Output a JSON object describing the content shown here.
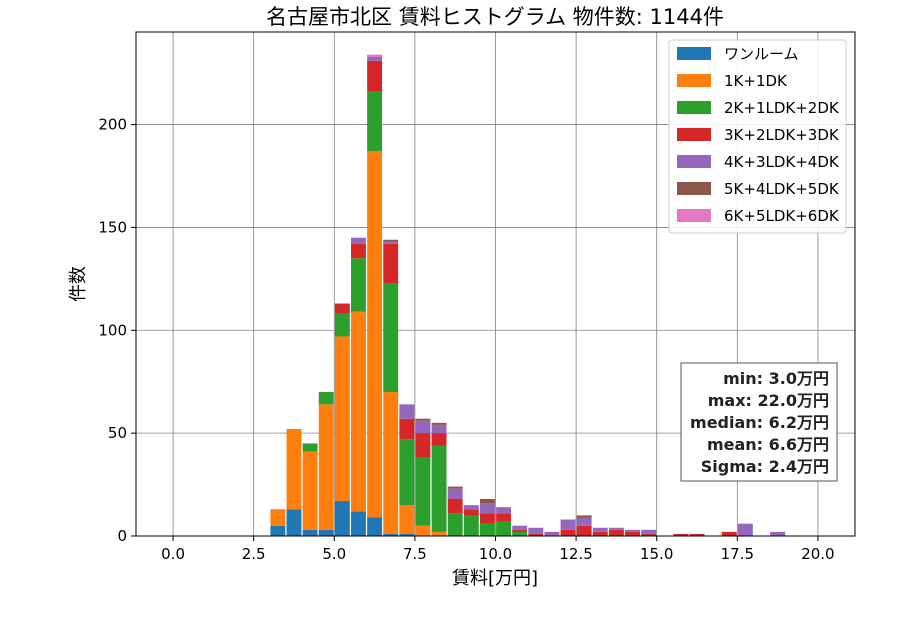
{
  "chart_data": {
    "type": "bar",
    "stacked": true,
    "title": "名古屋市北区 賃料ヒストグラム 物件数: 1144件",
    "xlabel": "賃料[万円]",
    "ylabel": "件数",
    "xlim": [
      -1.15,
      21.15
    ],
    "ylim": [
      0,
      245
    ],
    "xticks": [
      "0.0",
      "2.5",
      "5.0",
      "7.5",
      "10.0",
      "12.5",
      "15.0",
      "17.5",
      "20.0"
    ],
    "yticks": [
      "0",
      "50",
      "100",
      "150",
      "200"
    ],
    "grid": true,
    "legend_position": "top-right",
    "bin_width": 0.5,
    "x": [
      3.0,
      3.5,
      4.0,
      4.5,
      5.0,
      5.5,
      6.0,
      6.5,
      7.0,
      7.5,
      8.0,
      8.5,
      9.0,
      9.5,
      10.0,
      10.5,
      11.0,
      11.5,
      12.0,
      12.5,
      13.0,
      13.5,
      14.0,
      14.5,
      15.0,
      15.5,
      16.0,
      16.5,
      17.0,
      17.5,
      18.0,
      18.5,
      19.0,
      19.5,
      20.0,
      20.5
    ],
    "series": [
      {
        "name": "ワンルーム",
        "color": "#1f77b4",
        "values": [
          5,
          13,
          3,
          3,
          17,
          12,
          9,
          1,
          1,
          0,
          0,
          0,
          0,
          0,
          0,
          0,
          0,
          0,
          0,
          0,
          0,
          0,
          0,
          0,
          0,
          0,
          0,
          0,
          0,
          0,
          0,
          0,
          0,
          0,
          0,
          0
        ]
      },
      {
        "name": "1K+1DK",
        "color": "#ff7f0e",
        "values": [
          8,
          39,
          38,
          61,
          80,
          97,
          178,
          69,
          14,
          5,
          2,
          0,
          0,
          0,
          0,
          0,
          0,
          0,
          0,
          0,
          0,
          0,
          0,
          0,
          0,
          0,
          0,
          0,
          0,
          0,
          0,
          0,
          0,
          0,
          0,
          0
        ]
      },
      {
        "name": "2K+1LDK+2DK",
        "color": "#2ca02c",
        "values": [
          0,
          0,
          4,
          6,
          11,
          26,
          29,
          53,
          32,
          33,
          42,
          11,
          10,
          6,
          7,
          2,
          0,
          0,
          0,
          0,
          0,
          0,
          0,
          0,
          0,
          0,
          0,
          0,
          0,
          0,
          0,
          0,
          0,
          0,
          0,
          0
        ]
      },
      {
        "name": "3K+2LDK+3DK",
        "color": "#d62728",
        "values": [
          0,
          0,
          0,
          0,
          5,
          7,
          15,
          19,
          10,
          12,
          6,
          7,
          3,
          5,
          4,
          1,
          1,
          0,
          3,
          5,
          2,
          3,
          2,
          1,
          0,
          1,
          1,
          0,
          2,
          0,
          0,
          0,
          0,
          0,
          0,
          0
        ]
      },
      {
        "name": "4K+3LDK+4DK",
        "color": "#9467bd",
        "values": [
          0,
          0,
          0,
          0,
          0,
          3,
          2,
          1,
          7,
          6,
          4,
          5,
          2,
          5,
          3,
          2,
          3,
          2,
          5,
          4,
          2,
          1,
          1,
          2,
          0,
          0,
          0,
          0,
          0,
          6,
          0,
          2,
          0,
          0,
          0,
          0
        ]
      },
      {
        "name": "5K+4LDK+5DK",
        "color": "#8c564b",
        "values": [
          0,
          0,
          0,
          0,
          0,
          0,
          0,
          1,
          0,
          1,
          1,
          1,
          0,
          2,
          0,
          0,
          0,
          0,
          0,
          1,
          0,
          0,
          0,
          0,
          0,
          0,
          0,
          0,
          0,
          0,
          0,
          0,
          0,
          0,
          0,
          0
        ]
      },
      {
        "name": "6K+5LDK+6DK",
        "color": "#e377c2",
        "values": [
          0,
          0,
          0,
          0,
          0,
          0,
          1,
          0,
          0,
          0,
          0,
          0,
          0,
          0,
          0,
          0,
          0,
          0,
          0,
          0,
          0,
          0,
          0,
          0,
          0,
          0,
          0,
          0,
          0,
          0,
          0,
          0,
          0,
          0,
          0,
          0
        ]
      }
    ],
    "stats": [
      "min: 3.0万円",
      "max: 22.0万円",
      "median: 6.2万円",
      "mean: 6.6万円",
      "Sigma: 2.4万円"
    ]
  }
}
